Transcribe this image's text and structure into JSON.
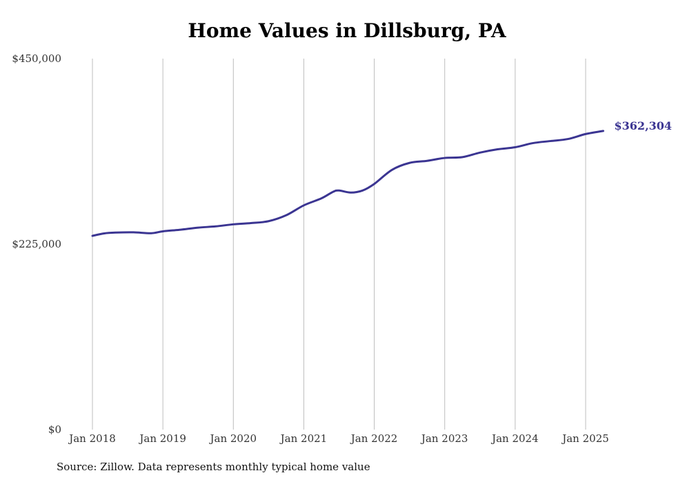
{
  "chart_data": {
    "type": "line",
    "title": "Home Values in Dillsburg, PA",
    "xlabel": "",
    "ylabel": "",
    "ylim": [
      0,
      450000
    ],
    "yticks": [
      {
        "value": 0,
        "label": "$0"
      },
      {
        "value": 225000,
        "label": "$225,000"
      },
      {
        "value": 450000,
        "label": "$450,000"
      }
    ],
    "xlim": [
      "2018-01",
      "2025-04"
    ],
    "xticks": [
      {
        "date": "2018-01",
        "label": "Jan 2018"
      },
      {
        "date": "2019-01",
        "label": "Jan 2019"
      },
      {
        "date": "2020-01",
        "label": "Jan 2020"
      },
      {
        "date": "2021-01",
        "label": "Jan 2021"
      },
      {
        "date": "2022-01",
        "label": "Jan 2022"
      },
      {
        "date": "2023-01",
        "label": "Jan 2023"
      },
      {
        "date": "2024-01",
        "label": "Jan 2024"
      },
      {
        "date": "2025-01",
        "label": "Jan 2025"
      }
    ],
    "grid": {
      "vertical": true,
      "horizontal": false
    },
    "legend": "none",
    "series": [
      {
        "color": "#3b3592",
        "last_label": "$362,304",
        "points": [
          {
            "x": "2018-01",
            "y": 235000
          },
          {
            "x": "2018-03",
            "y": 238000
          },
          {
            "x": "2018-05",
            "y": 239000
          },
          {
            "x": "2018-08",
            "y": 239300
          },
          {
            "x": "2018-11",
            "y": 238200
          },
          {
            "x": "2019-01",
            "y": 240500
          },
          {
            "x": "2019-04",
            "y": 242500
          },
          {
            "x": "2019-07",
            "y": 245000
          },
          {
            "x": "2019-10",
            "y": 246500
          },
          {
            "x": "2020-01",
            "y": 249000
          },
          {
            "x": "2020-04",
            "y": 250500
          },
          {
            "x": "2020-07",
            "y": 252800
          },
          {
            "x": "2020-10",
            "y": 260000
          },
          {
            "x": "2021-01",
            "y": 272000
          },
          {
            "x": "2021-04",
            "y": 280500
          },
          {
            "x": "2021-06",
            "y": 288500
          },
          {
            "x": "2021-07",
            "y": 290000
          },
          {
            "x": "2021-09",
            "y": 287500
          },
          {
            "x": "2021-11",
            "y": 290000
          },
          {
            "x": "2022-01",
            "y": 298000
          },
          {
            "x": "2022-04",
            "y": 315000
          },
          {
            "x": "2022-07",
            "y": 323500
          },
          {
            "x": "2022-10",
            "y": 326000
          },
          {
            "x": "2023-01",
            "y": 329500
          },
          {
            "x": "2023-04",
            "y": 330500
          },
          {
            "x": "2023-07",
            "y": 336000
          },
          {
            "x": "2023-10",
            "y": 340000
          },
          {
            "x": "2024-01",
            "y": 342500
          },
          {
            "x": "2024-04",
            "y": 347500
          },
          {
            "x": "2024-07",
            "y": 350000
          },
          {
            "x": "2024-10",
            "y": 352500
          },
          {
            "x": "2025-01",
            "y": 358500
          },
          {
            "x": "2025-04",
            "y": 362304
          }
        ]
      }
    ]
  },
  "source_text": "Source: Zillow. Data represents monthly typical home value"
}
